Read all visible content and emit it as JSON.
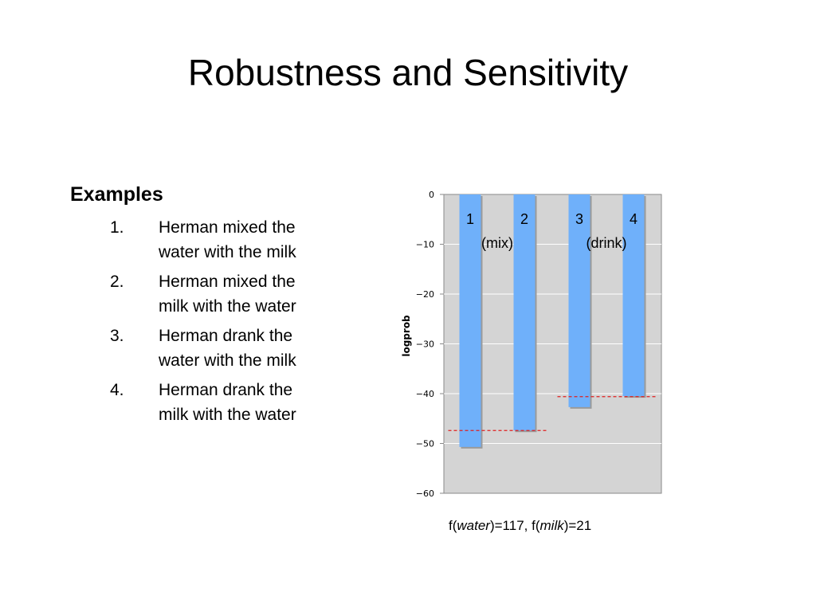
{
  "slide": {
    "title": "Robustness and Sensitivity"
  },
  "examples": {
    "heading": "Examples",
    "items": [
      {
        "number": "1.",
        "line1": "Herman mixed the",
        "line2": "water with the milk"
      },
      {
        "number": "2.",
        "line1": "Herman mixed the",
        "line2": "milk with the water"
      },
      {
        "number": "3.",
        "line1": "Herman drank the",
        "line2": "water with the milk"
      },
      {
        "number": "4.",
        "line1": "Herman drank the",
        "line2": "milk with the water"
      }
    ]
  },
  "chart_data": {
    "type": "bar",
    "categories": [
      "1",
      "2",
      "3",
      "4"
    ],
    "values": [
      -50.7,
      -47.4,
      -42.7,
      -40.5
    ],
    "ylabel": "logprob",
    "ylim": [
      -60,
      0
    ],
    "yticks": [
      0,
      -10,
      -20,
      -30,
      -40,
      -50,
      -60
    ],
    "grid": true,
    "group_labels": [
      "(mix)",
      "(drink)"
    ],
    "reference_lines": [
      {
        "y": -47.4,
        "from_category": 0,
        "to_category": 1
      },
      {
        "y": -40.6,
        "from_category": 2,
        "to_category": 3
      }
    ],
    "colors": {
      "bar": "#6fb0fa",
      "plot_background": "#d4d4d4",
      "grid": "#ffffff",
      "reference_line": "#e02020"
    }
  },
  "footnote": {
    "prefix": "f(",
    "word1": "water",
    "middle": ")=117, f(",
    "word2": "milk",
    "suffix": ")=21"
  }
}
